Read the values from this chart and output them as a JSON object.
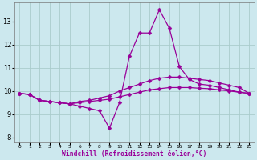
{
  "xlabel": "Windchill (Refroidissement éolien,°C)",
  "x_hours": [
    0,
    1,
    2,
    3,
    4,
    5,
    6,
    7,
    8,
    9,
    10,
    11,
    12,
    13,
    14,
    15,
    16,
    17,
    18,
    19,
    20,
    21,
    22,
    23
  ],
  "line1": [
    9.9,
    9.85,
    9.6,
    9.55,
    9.5,
    9.45,
    9.35,
    9.25,
    9.15,
    8.4,
    9.5,
    11.5,
    12.5,
    12.5,
    13.5,
    12.7,
    11.05,
    10.5,
    10.3,
    10.25,
    10.15,
    10.05,
    9.95,
    9.9
  ],
  "line2": [
    9.9,
    9.85,
    9.6,
    9.55,
    9.5,
    9.45,
    9.55,
    9.6,
    9.7,
    9.8,
    10.0,
    10.15,
    10.3,
    10.45,
    10.55,
    10.6,
    10.6,
    10.55,
    10.5,
    10.45,
    10.35,
    10.25,
    10.15,
    9.9
  ],
  "line3": [
    9.9,
    9.85,
    9.6,
    9.55,
    9.5,
    9.45,
    9.5,
    9.55,
    9.6,
    9.65,
    9.75,
    9.85,
    9.95,
    10.05,
    10.1,
    10.15,
    10.15,
    10.15,
    10.12,
    10.1,
    10.05,
    10.0,
    9.95,
    9.9
  ],
  "bg_color": "#cce8ee",
  "grid_color": "#aacccc",
  "line_color": "#990099",
  "ylim": [
    7.8,
    13.8
  ],
  "yticks": [
    8,
    9,
    10,
    11,
    12,
    13
  ],
  "xlim": [
    -0.5,
    23.5
  ],
  "markersize": 2.5,
  "linewidth": 0.9
}
